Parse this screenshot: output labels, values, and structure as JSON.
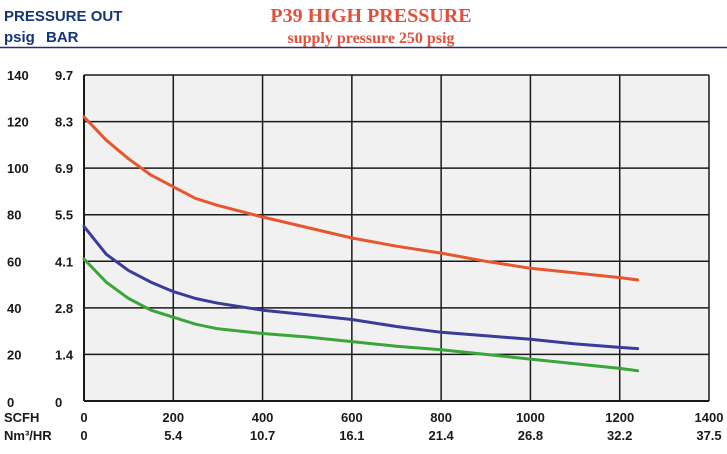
{
  "header": {
    "left_line1": "PRESSURE OUT",
    "left_psig": "psig",
    "left_bar": "BAR",
    "title": "P39 HIGH PRESSURE",
    "subtitle": "supply pressure 250 psig"
  },
  "colors": {
    "header_blue": "#14357a",
    "title_red": "#e0503a",
    "grid": "#1a1a1a",
    "plot_bg": "#f1f1f1"
  },
  "chart_data": {
    "type": "line",
    "title": "P39 HIGH PRESSURE",
    "subtitle": "supply pressure 250 psig",
    "xlim": [
      0,
      1400
    ],
    "ylim": [
      0,
      140
    ],
    "grid": true,
    "x_unit_primary": "SCFH",
    "x_unit_secondary": "Nm³/HR",
    "x_ticks": [
      0,
      200,
      400,
      600,
      800,
      1000,
      1200,
      1400
    ],
    "x_ticks_secondary": [
      "0",
      "5.4",
      "10.7",
      "16.1",
      "21.4",
      "26.8",
      "32.2",
      "37.5"
    ],
    "y_ticks_psig": [
      "140",
      "120",
      "100",
      "80",
      "60",
      "40",
      "20",
      "0"
    ],
    "y_ticks_bar": [
      "9.7",
      "8.3",
      "6.9",
      "5.5",
      "4.1",
      "2.8",
      "1.4",
      "0"
    ],
    "y_tick_values": [
      140,
      120,
      100,
      80,
      60,
      40,
      20,
      0
    ],
    "series": [
      {
        "color": "#e8562d",
        "x": [
          0,
          50,
          100,
          150,
          200,
          250,
          300,
          400,
          500,
          600,
          700,
          800,
          900,
          1000,
          1100,
          1200,
          1240
        ],
        "y": [
          122,
          112,
          104,
          97,
          92,
          87,
          84,
          79,
          74.5,
          70,
          66.5,
          63.5,
          60,
          57,
          55,
          53,
          52
        ]
      },
      {
        "color": "#3b3b9c",
        "x": [
          0,
          50,
          100,
          150,
          200,
          250,
          300,
          400,
          500,
          600,
          700,
          800,
          900,
          1000,
          1100,
          1200,
          1240
        ],
        "y": [
          75,
          63,
          56,
          51,
          47,
          44,
          42,
          39,
          37,
          35,
          32,
          29.5,
          28,
          26.5,
          24.5,
          23,
          22.5
        ]
      },
      {
        "color": "#3aa63a",
        "x": [
          0,
          50,
          100,
          150,
          200,
          250,
          300,
          400,
          500,
          600,
          700,
          800,
          900,
          1000,
          1100,
          1200,
          1240
        ],
        "y": [
          61,
          51,
          44,
          39,
          36,
          33,
          31,
          29,
          27.5,
          25.5,
          23.5,
          22,
          20,
          18,
          16,
          14,
          13
        ]
      }
    ]
  }
}
